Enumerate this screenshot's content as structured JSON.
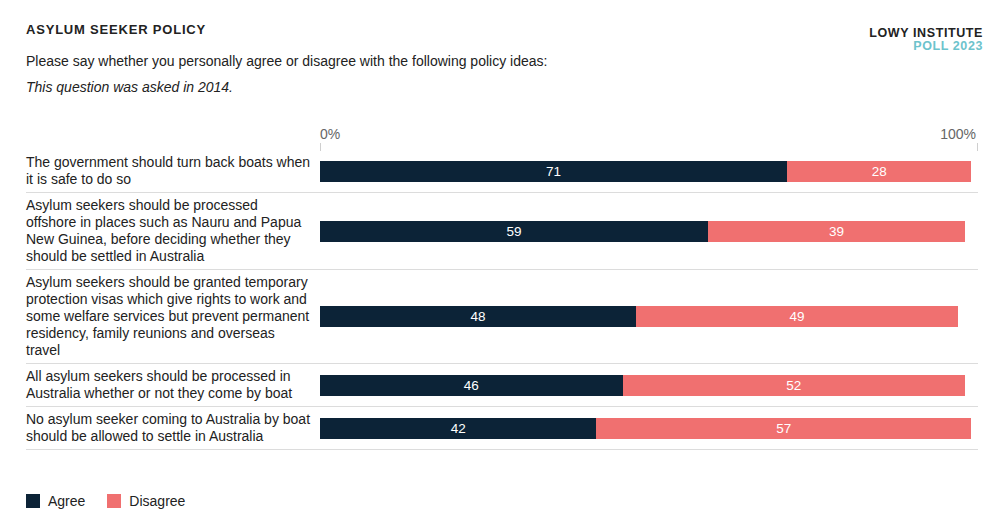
{
  "chart_data": {
    "type": "bar",
    "title": "ASYLUM SEEKER POLICY",
    "subtitle": "Please say whether you personally agree or disagree with the following policy ideas:",
    "note": "This question was asked in 2014.",
    "source": [
      "LOWY INSTITUTE",
      "POLL 2023"
    ],
    "orientation": "horizontal",
    "stacked": true,
    "data_labels": true,
    "legend": "bottom-left",
    "grid": false,
    "categories": [
      "The government should turn back boats when it is safe to do so",
      "Asylum seekers should be processed offshore in places such as Nauru and Papua New Guinea, before deciding whether they should be settled in Australia",
      "Asylum seekers should be granted temporary protection visas which give rights to work and some welfare services but prevent permanent residency, family reunions and overseas travel",
      "All asylum seekers should be processed in Australia whether or not they come by boat",
      "No asylum seeker coming to Australia by boat should be allowed to settle in Australia"
    ],
    "series": [
      {
        "name": "Agree",
        "color": "#0c2337",
        "values": [
          71,
          59,
          48,
          46,
          42
        ]
      },
      {
        "name": "Disagree",
        "color": "#f07070",
        "values": [
          28,
          39,
          49,
          52,
          57
        ]
      }
    ],
    "xlim": [
      0,
      100
    ],
    "xticks": [
      {
        "value": 0,
        "label": "0%"
      },
      {
        "value": 100,
        "label": "100%"
      }
    ]
  }
}
